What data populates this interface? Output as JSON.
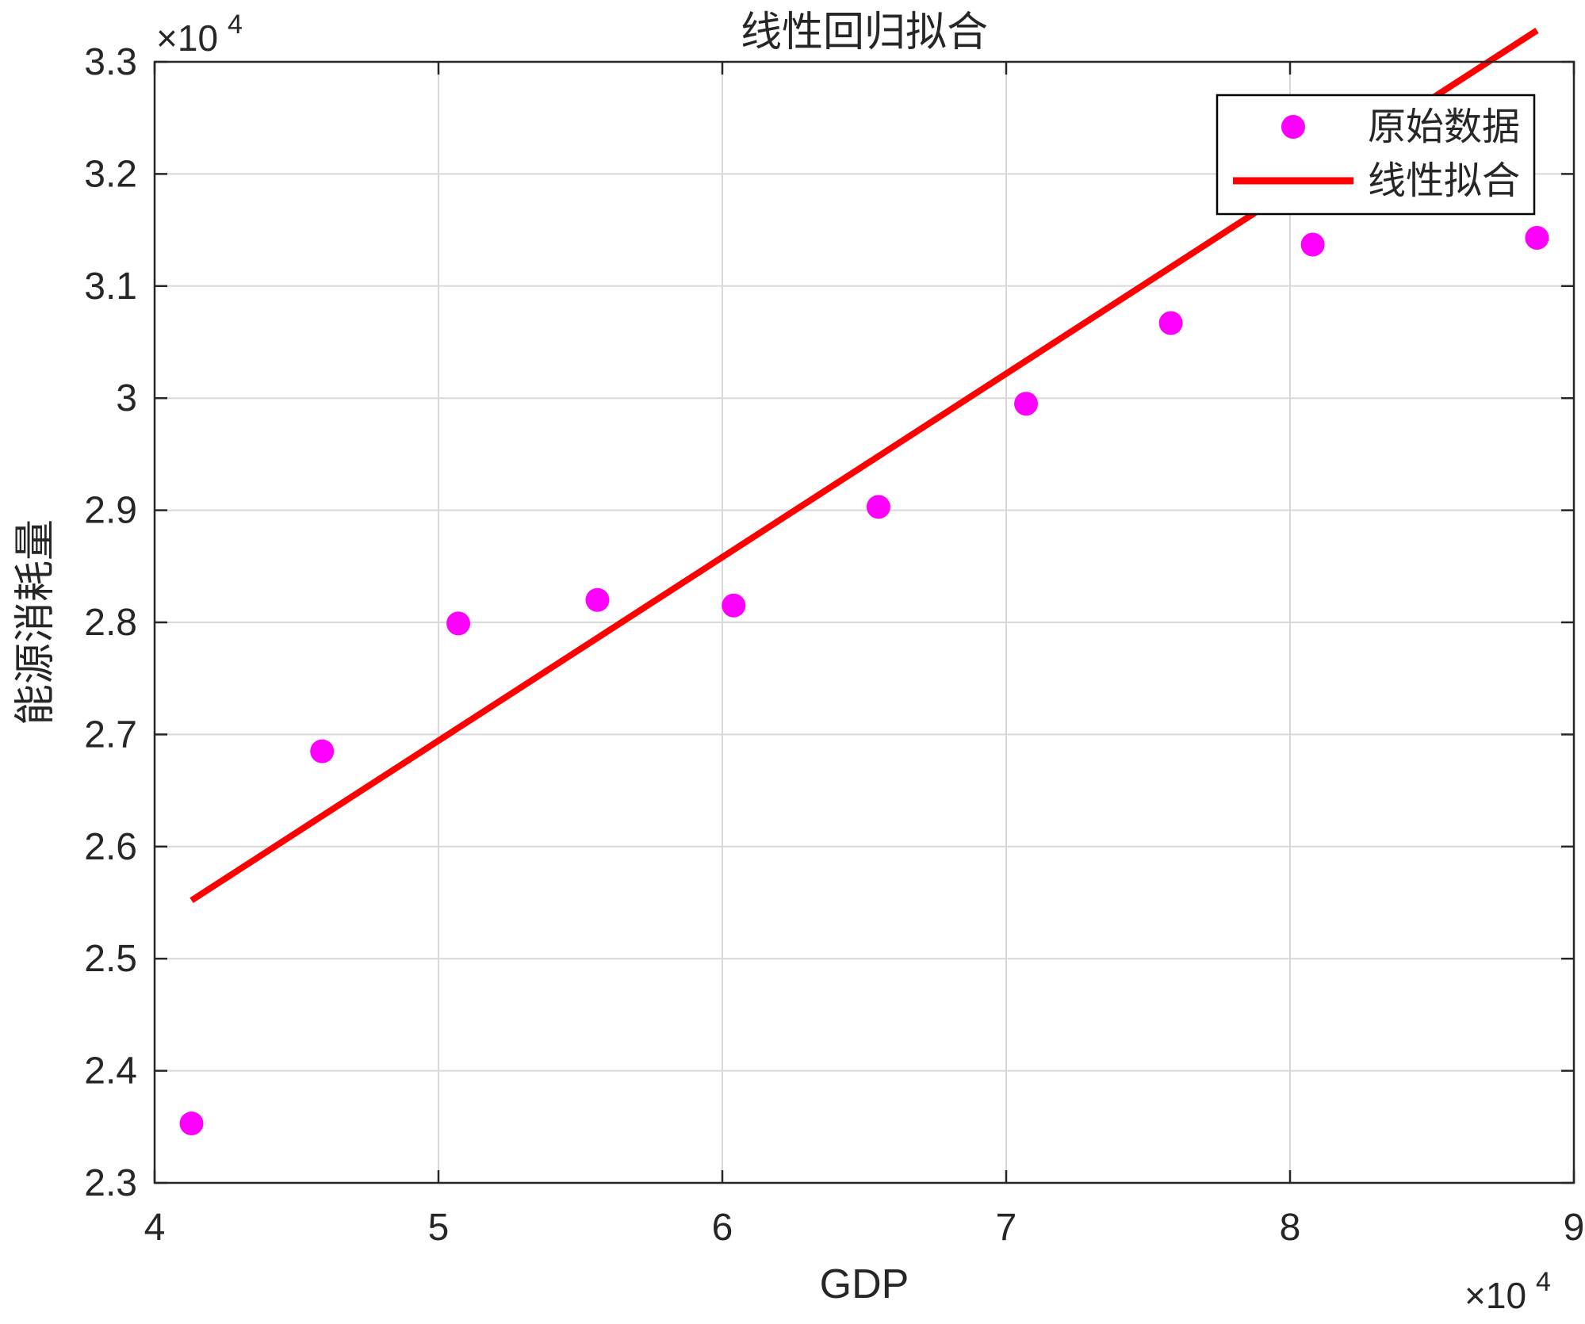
{
  "chart_data": {
    "type": "scatter",
    "title": "线性回归拟合",
    "xlabel": "GDP",
    "ylabel": "能源消耗量",
    "x_multiplier_label": "×10",
    "x_multiplier_exp": "4",
    "y_multiplier_label": "×10",
    "y_multiplier_exp": "4",
    "xlim": [
      4,
      9
    ],
    "ylim": [
      2.3,
      3.3
    ],
    "x_ticks": [
      4,
      5,
      6,
      7,
      8,
      9
    ],
    "x_tick_labels": [
      "4",
      "5",
      "6",
      "7",
      "8",
      "9"
    ],
    "y_ticks": [
      2.3,
      2.4,
      2.5,
      2.6,
      2.7,
      2.8,
      2.9,
      3.0,
      3.1,
      3.2,
      3.3
    ],
    "y_tick_labels": [
      "2.3",
      "2.4",
      "2.5",
      "2.6",
      "2.7",
      "2.8",
      "2.9",
      "3",
      "3.1",
      "3.2",
      "3.3"
    ],
    "grid": true,
    "legend_position": "top-right",
    "series": [
      {
        "name": "原始数据",
        "kind": "scatter",
        "color": "#ff00ff",
        "x": [
          4.13,
          4.59,
          5.07,
          5.56,
          6.04,
          6.55,
          7.07,
          7.58,
          8.08,
          8.87
        ],
        "y": [
          2.353,
          2.685,
          2.799,
          2.82,
          2.815,
          2.903,
          2.995,
          3.067,
          3.137,
          3.143
        ]
      },
      {
        "name": "线性拟合",
        "kind": "line",
        "color": "#ff0000",
        "x": [
          4.13,
          8.87
        ],
        "y": [
          2.552,
          3.328
        ]
      }
    ]
  }
}
